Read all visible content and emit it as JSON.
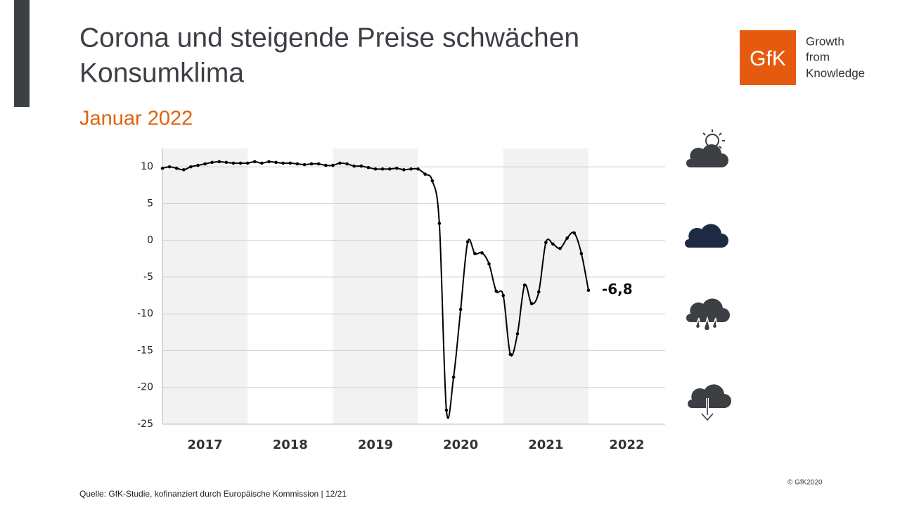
{
  "header": {
    "title_line1": "Corona und steigende Preise schwächen",
    "title_line2": "Konsumklima",
    "subtitle": "Januar 2022"
  },
  "logo": {
    "mark": "GfK",
    "line1": "Growth",
    "line2": "from",
    "line3": "Knowledge"
  },
  "chart_data": {
    "type": "line",
    "x": [
      2017,
      2017.083,
      2017.167,
      2017.25,
      2017.333,
      2017.417,
      2017.5,
      2017.583,
      2017.667,
      2017.75,
      2017.833,
      2017.917,
      2018,
      2018.083,
      2018.167,
      2018.25,
      2018.333,
      2018.417,
      2018.5,
      2018.583,
      2018.667,
      2018.75,
      2018.833,
      2018.917,
      2019,
      2019.083,
      2019.167,
      2019.25,
      2019.333,
      2019.417,
      2019.5,
      2019.583,
      2019.667,
      2019.75,
      2019.833,
      2019.917,
      2020,
      2020.083,
      2020.167,
      2020.25,
      2020.333,
      2020.417,
      2020.5,
      2020.583,
      2020.667,
      2020.75,
      2020.833,
      2020.917,
      2021,
      2021.083,
      2021.167,
      2021.25,
      2021.333,
      2021.417,
      2021.5,
      2021.583,
      2021.667,
      2021.75,
      2021.833,
      2021.917,
      2022
    ],
    "series": [
      {
        "name": "Konsumklima",
        "color": "#000000",
        "values": [
          9.8,
          10,
          9.8,
          9.6,
          10,
          10.2,
          10.4,
          10.6,
          10.7,
          10.6,
          10.5,
          10.5,
          10.5,
          10.7,
          10.5,
          10.7,
          10.6,
          10.5,
          10.5,
          10.4,
          10.3,
          10.4,
          10.4,
          10.2,
          10.2,
          10.5,
          10.4,
          10.1,
          10.1,
          9.9,
          9.7,
          9.7,
          9.7,
          9.8,
          9.6,
          9.7,
          9.7,
          9.0,
          8.1,
          2.3,
          -23.1,
          -18.6,
          -9.4,
          -0.2,
          -1.8,
          -1.7,
          -3.2,
          -6.9,
          -7.5,
          -15.5,
          -12.7,
          -6.1,
          -8.6,
          -7.0,
          -0.3,
          -0.5,
          -1.1,
          0.3,
          1.0,
          -1.8,
          -6.8
        ]
      }
    ],
    "annotation": "-6,8",
    "xlim": [
      2017,
      2022.9
    ],
    "xticks": [
      2017,
      2018,
      2019,
      2020,
      2021,
      2022
    ],
    "ylim": [
      -25,
      12.5
    ],
    "yticks": [
      10,
      5,
      0,
      -5,
      -10,
      -15,
      -20,
      -25
    ],
    "grid": true
  },
  "footer": {
    "source": "Quelle: GfK-Studie, kofinanziert durch Europäische Kommission | 12/21",
    "copyright": "© GfK2020"
  }
}
